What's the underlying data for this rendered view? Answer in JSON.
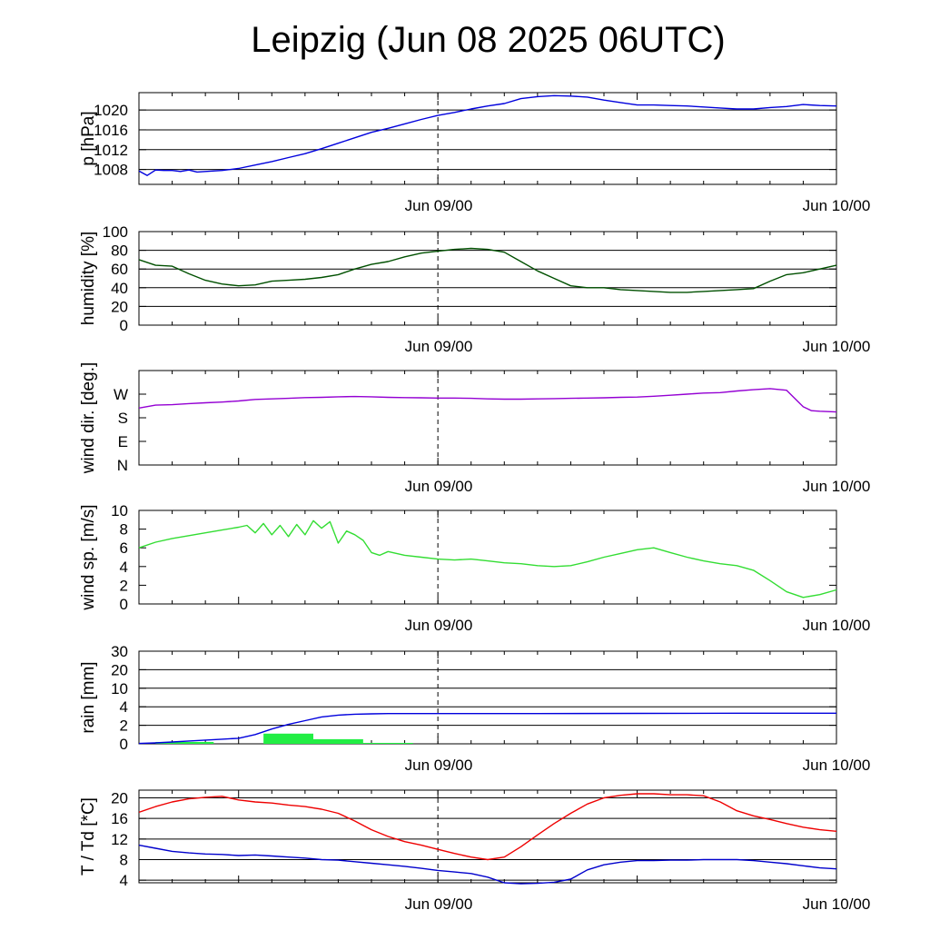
{
  "title": "Leipzig (Jun 08 2025 06UTC)",
  "colors": {
    "pressure": "#0000dd",
    "humidity": "#005000",
    "wind_dir": "#9400d3",
    "wind_speed": "#33dd33",
    "rain_bar": "#22ee44",
    "rain_cum": "#0000dd",
    "temperature": "#ee0000",
    "dewpoint": "#0000cc",
    "grid": "#000000"
  },
  "chart_data": [
    {
      "type": "line",
      "ylabel": "p [hPa]",
      "ylim": [
        1005,
        1023.5
      ],
      "yticks": [
        1008,
        1012,
        1016,
        1020
      ],
      "yticklabels": [
        "1008",
        "1012",
        "1016",
        "1020"
      ],
      "xlim": [
        -18,
        24
      ],
      "xticklabels": [
        "Jun 09/00",
        "Jun 10/00"
      ],
      "grid": true,
      "series": [
        {
          "color_key": "pressure",
          "x": [
            -18,
            -17.5,
            -17,
            -16.5,
            -16,
            -15.5,
            -15,
            -14.5,
            -14,
            -13,
            -12,
            -11,
            -10,
            -9,
            -8,
            -7,
            -6,
            -5,
            -4,
            -3,
            -2,
            -1,
            0,
            1,
            2,
            3,
            4,
            5,
            6,
            7,
            8,
            9,
            10,
            11,
            12,
            13,
            14,
            15,
            16,
            17,
            18,
            19,
            20,
            21,
            22,
            23,
            24
          ],
          "y": [
            1007.7,
            1006.8,
            1007.9,
            1007.8,
            1007.8,
            1007.6,
            1007.9,
            1007.5,
            1007.6,
            1007.8,
            1008.2,
            1008.9,
            1009.6,
            1010.4,
            1011.2,
            1012.2,
            1013.3,
            1014.4,
            1015.5,
            1016.3,
            1017.2,
            1018.1,
            1018.9,
            1019.5,
            1020.2,
            1020.8,
            1021.3,
            1022.3,
            1022.7,
            1022.9,
            1022.8,
            1022.6,
            1022.0,
            1021.5,
            1021.0,
            1021.0,
            1020.9,
            1020.8,
            1020.6,
            1020.4,
            1020.2,
            1020.2,
            1020.5,
            1020.7,
            1021.1,
            1020.9,
            1020.8
          ]
        }
      ]
    },
    {
      "type": "line",
      "ylabel": "humidity [%]",
      "ylim": [
        0,
        100
      ],
      "yticks": [
        0,
        20,
        40,
        60,
        80,
        100
      ],
      "yticklabels": [
        "0",
        "20",
        "40",
        "60",
        "80",
        "100"
      ],
      "xlim": [
        -18,
        24
      ],
      "xticklabels": [
        "Jun 09/00",
        "Jun 10/00"
      ],
      "grid": true,
      "series": [
        {
          "color_key": "humidity",
          "x": [
            -18,
            -17,
            -16,
            -15,
            -14,
            -13,
            -12,
            -11,
            -10,
            -9,
            -8,
            -7,
            -6,
            -5,
            -4,
            -3,
            -2,
            -1,
            0,
            1,
            2,
            3,
            4,
            5,
            6,
            7,
            8,
            9,
            10,
            11,
            12,
            13,
            14,
            15,
            16,
            17,
            18,
            19,
            20,
            21,
            22,
            23,
            24
          ],
          "y": [
            70,
            64,
            63,
            55,
            48,
            44,
            42,
            43,
            47,
            48,
            49,
            51,
            54,
            60,
            65,
            68,
            73,
            77,
            79,
            81,
            82,
            81,
            78,
            68,
            58,
            50,
            42,
            40,
            40,
            38,
            37,
            36,
            35,
            35,
            36,
            37,
            38,
            39,
            47,
            54,
            56,
            60,
            64
          ]
        }
      ]
    },
    {
      "type": "line",
      "ylabel": "wind dir. [deg.]",
      "ylim": [
        0,
        360
      ],
      "yticks": [
        0,
        90,
        180,
        270
      ],
      "yticklabels": [
        "N",
        "E",
        "S",
        "W"
      ],
      "xlim": [
        -18,
        24
      ],
      "xticklabels": [
        "Jun 09/00",
        "Jun 10/00"
      ],
      "grid": false,
      "series": [
        {
          "color_key": "wind_dir",
          "x": [
            -18,
            -17,
            -16,
            -15,
            -14,
            -13,
            -12,
            -11,
            -10,
            -9,
            -8,
            -7,
            -6,
            -5,
            -4,
            -3,
            -2,
            -1,
            0,
            1,
            2,
            3,
            4,
            5,
            6,
            7,
            8,
            9,
            10,
            11,
            12,
            13,
            14,
            15,
            16,
            17,
            18,
            19,
            20,
            21,
            22,
            22.5,
            23,
            24
          ],
          "y": [
            217,
            228,
            230,
            234,
            237,
            240,
            244,
            250,
            252,
            254,
            257,
            258,
            260,
            261,
            260,
            258,
            257,
            256,
            255,
            255,
            254,
            252,
            251,
            251,
            252,
            253,
            254,
            255,
            256,
            258,
            259,
            262,
            266,
            270,
            274,
            276,
            282,
            287,
            291,
            285,
            222,
            207,
            205,
            202
          ]
        }
      ]
    },
    {
      "type": "line",
      "ylabel": "wind sp. [m/s]",
      "ylim": [
        0,
        10
      ],
      "yticks": [
        0,
        2,
        4,
        6,
        8,
        10
      ],
      "yticklabels": [
        "0",
        "2",
        "4",
        "6",
        "8",
        "10"
      ],
      "xlim": [
        -18,
        24
      ],
      "xticklabels": [
        "Jun 09/00",
        "Jun 10/00"
      ],
      "grid": false,
      "series": [
        {
          "color_key": "wind_speed",
          "x": [
            -18,
            -17,
            -16,
            -15,
            -14,
            -13,
            -12,
            -11.5,
            -11,
            -10.5,
            -10,
            -9.5,
            -9,
            -8.5,
            -8,
            -7.5,
            -7,
            -6.5,
            -6,
            -5.5,
            -5,
            -4.5,
            -4,
            -3.5,
            -3,
            -2,
            -1,
            0,
            1,
            2,
            3,
            4,
            5,
            6,
            7,
            8,
            9,
            10,
            11,
            12,
            13,
            14,
            15,
            16,
            17,
            18,
            19,
            20,
            21,
            22,
            23,
            24
          ],
          "y": [
            6.0,
            6.6,
            7.0,
            7.3,
            7.6,
            7.9,
            8.2,
            8.4,
            7.6,
            8.6,
            7.4,
            8.4,
            7.2,
            8.5,
            7.4,
            8.9,
            8.1,
            8.8,
            6.5,
            7.8,
            7.4,
            6.8,
            5.5,
            5.2,
            5.6,
            5.2,
            5.0,
            4.8,
            4.7,
            4.8,
            4.6,
            4.4,
            4.3,
            4.1,
            4.0,
            4.1,
            4.5,
            5.0,
            5.4,
            5.8,
            6.0,
            5.5,
            5.0,
            4.6,
            4.3,
            4.1,
            3.6,
            2.5,
            1.3,
            0.7,
            1.0,
            1.5
          ]
        }
      ]
    },
    {
      "type": "bar",
      "ylabel": "rain [mm]",
      "ylim": [
        0,
        5
      ],
      "yticks": [
        0,
        1,
        2,
        3,
        4,
        5
      ],
      "yticklabels": [
        "0",
        "2",
        "4",
        "10",
        "20",
        "30"
      ],
      "xlim": [
        -18,
        24
      ],
      "xticklabels": [
        "Jun 09/00",
        "Jun 10/00"
      ],
      "grid": true,
      "bars": [
        {
          "x0": -17,
          "x1": -13.5,
          "value": 0.1
        },
        {
          "x0": -10.5,
          "x1": -7.5,
          "value": 0.55
        },
        {
          "x0": -7.5,
          "x1": -4.5,
          "value": 0.25
        },
        {
          "x0": -4.5,
          "x1": -1.5,
          "value": 0.05
        }
      ],
      "series": [
        {
          "color_key": "rain_cum",
          "x": [
            -18,
            -17,
            -16,
            -15,
            -14,
            -13,
            -12,
            -11,
            -10,
            -9,
            -8,
            -7,
            -6,
            -5,
            -4,
            -3,
            0,
            6,
            12,
            18,
            24
          ],
          "y": [
            0.02,
            0.05,
            0.1,
            0.15,
            0.2,
            0.25,
            0.3,
            0.5,
            0.8,
            1.05,
            1.25,
            1.45,
            1.55,
            1.6,
            1.62,
            1.63,
            1.63,
            1.63,
            1.64,
            1.65,
            1.65
          ]
        }
      ]
    },
    {
      "type": "line",
      "ylabel": "T / Td [*C]",
      "ylim": [
        3.5,
        21.5
      ],
      "yticks": [
        4,
        8,
        12,
        16,
        20
      ],
      "yticklabels": [
        "4",
        "8",
        "12",
        "16",
        "20"
      ],
      "xlim": [
        -18,
        24
      ],
      "xticklabels": [
        "Jun 09/00",
        "Jun 10/00"
      ],
      "grid": true,
      "series": [
        {
          "color_key": "temperature",
          "x": [
            -18,
            -17,
            -16,
            -15,
            -14,
            -13,
            -12,
            -11,
            -10,
            -9,
            -8,
            -7,
            -6,
            -5,
            -4,
            -3,
            -2,
            -1,
            0,
            1,
            2,
            3,
            4,
            5,
            6,
            7,
            8,
            9,
            10,
            11,
            12,
            13,
            14,
            15,
            16,
            17,
            18,
            19,
            20,
            21,
            22,
            23,
            24
          ],
          "y": [
            17.2,
            18.3,
            19.2,
            19.8,
            20.1,
            20.3,
            19.6,
            19.2,
            19.0,
            18.6,
            18.3,
            17.8,
            17.0,
            15.5,
            13.8,
            12.5,
            11.5,
            10.8,
            10.0,
            9.2,
            8.5,
            8.0,
            8.5,
            10.5,
            12.8,
            15.0,
            17.0,
            18.8,
            20.0,
            20.5,
            20.8,
            20.8,
            20.6,
            20.6,
            20.4,
            19.2,
            17.5,
            16.5,
            15.8,
            15.0,
            14.3,
            13.8,
            13.5
          ]
        },
        {
          "color_key": "dewpoint",
          "x": [
            -18,
            -17,
            -16,
            -15,
            -14,
            -13,
            -12,
            -11,
            -10,
            -9,
            -8,
            -7,
            -6,
            -5,
            -4,
            -3,
            -2,
            -1,
            0,
            1,
            2,
            3,
            4,
            5,
            6,
            7,
            8,
            9,
            10,
            11,
            12,
            13,
            14,
            15,
            16,
            17,
            18,
            19,
            20,
            21,
            22,
            23,
            24
          ],
          "y": [
            10.8,
            10.2,
            9.6,
            9.3,
            9.1,
            9.0,
            8.8,
            8.9,
            8.7,
            8.5,
            8.3,
            8.0,
            7.9,
            7.6,
            7.3,
            7.0,
            6.7,
            6.3,
            5.9,
            5.6,
            5.3,
            4.6,
            3.5,
            3.3,
            3.4,
            3.6,
            4.2,
            6.0,
            7.0,
            7.5,
            7.8,
            7.8,
            7.9,
            7.9,
            8.0,
            8.0,
            8.0,
            7.8,
            7.5,
            7.2,
            6.8,
            6.4,
            6.2
          ]
        }
      ]
    }
  ]
}
